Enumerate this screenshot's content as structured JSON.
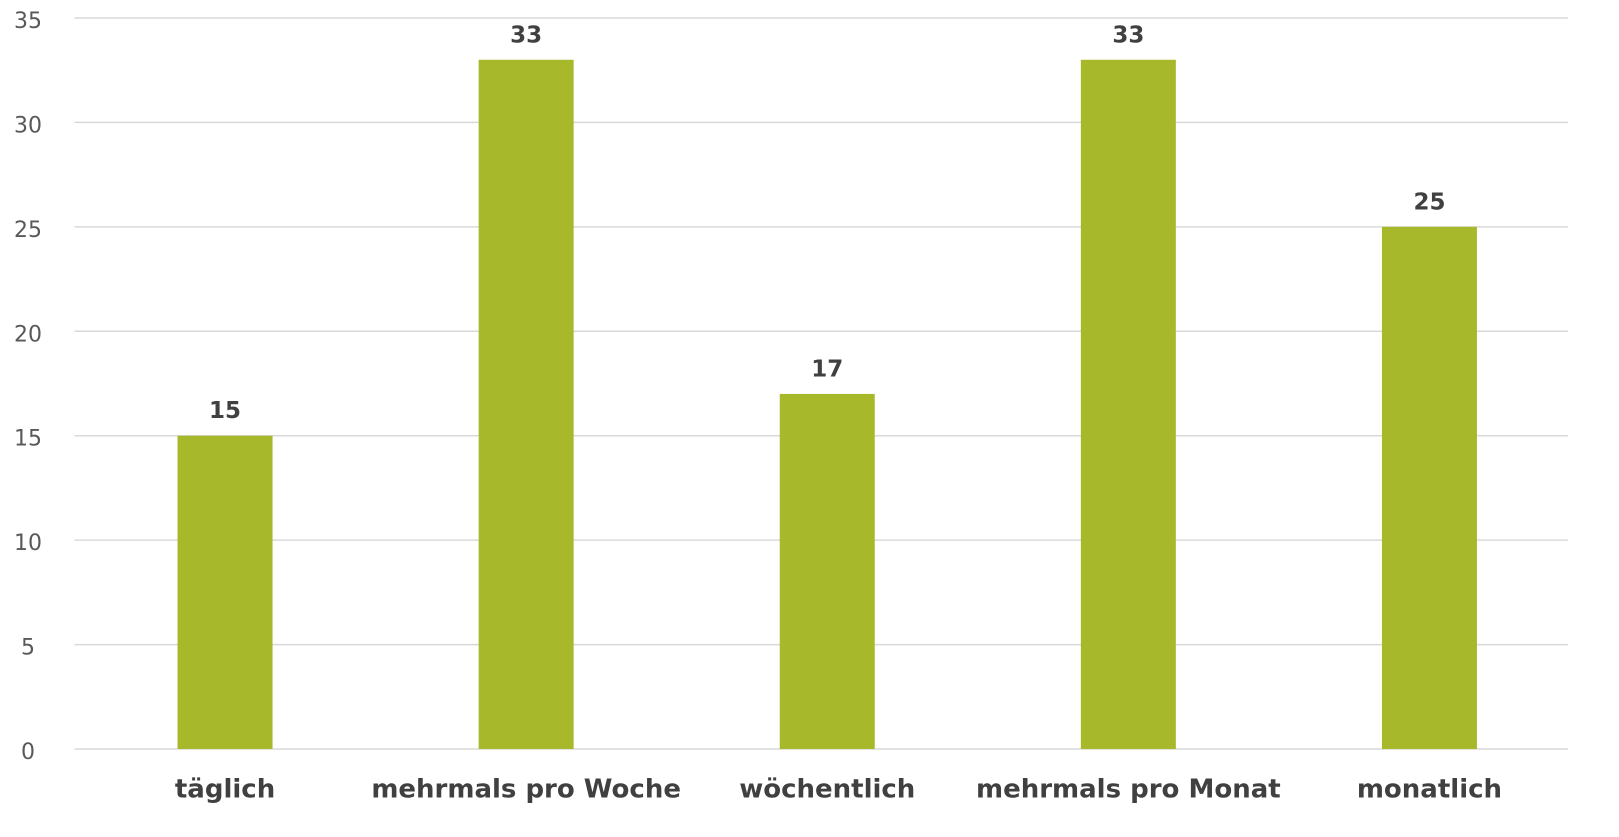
{
  "chart_data": {
    "type": "bar",
    "categories": [
      "täglich",
      "mehrmals pro Woche",
      "wöchentlich",
      "mehrmals pro Monat",
      "monatlich"
    ],
    "values": [
      15,
      33,
      17,
      33,
      25
    ],
    "color": "#a7b92a",
    "ylim": [
      0,
      35
    ],
    "yticks": [
      0,
      5,
      10,
      15,
      20,
      25,
      30,
      35
    ],
    "grid": true
  }
}
